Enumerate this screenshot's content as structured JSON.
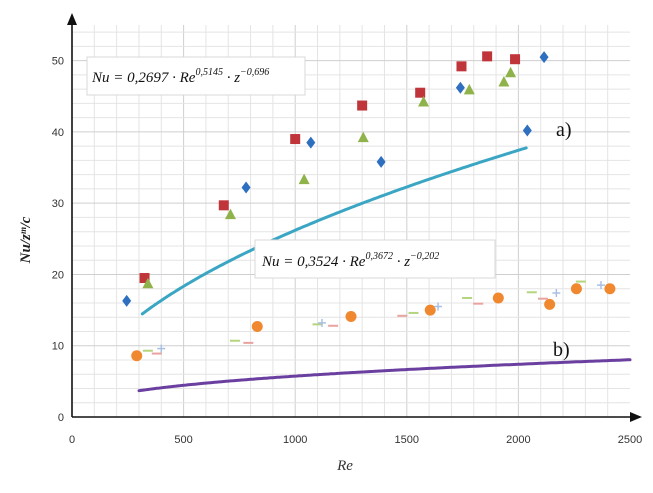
{
  "chart_data": {
    "type": "scatter",
    "xlabel": "Re",
    "ylabel": "Nu/zᵐ/c",
    "xlim": [
      0,
      2500
    ],
    "ylim": [
      0,
      55
    ],
    "x_ticks": [
      "0",
      "500",
      "1000",
      "1500",
      "2000",
      "2500"
    ],
    "y_ticks": [
      "0",
      "10",
      "20",
      "30",
      "40",
      "50"
    ],
    "grid": true,
    "equations": [
      {
        "base": "Nu = 0,2697 · Re",
        "exp1": "0,5145",
        "mid": " · z",
        "exp2": "−0,696"
      },
      {
        "base": "Nu = 0,3524 · Re",
        "exp1": "0,3672",
        "mid": " · z",
        "exp2": "−0,202"
      }
    ],
    "curve_labels": [
      "a)",
      "b)"
    ],
    "fits": [
      {
        "a": 0.7495,
        "b": 0.5145,
        "x_range": [
          315,
          2035
        ],
        "color": "#3aa6c4"
      },
      {
        "a": 0.454,
        "b": 0.3672,
        "x_range": [
          300,
          2500
        ],
        "color": "#6a3fa0"
      }
    ],
    "series": [
      {
        "marker": "square",
        "color": "#c0353a",
        "points": [
          [
            325,
            19.5
          ],
          [
            680,
            29.7
          ],
          [
            1000,
            39
          ],
          [
            1300,
            43.7
          ],
          [
            1560,
            45.5
          ],
          [
            1745,
            49.2
          ],
          [
            1860,
            50.6
          ],
          [
            1985,
            50.2
          ]
        ]
      },
      {
        "marker": "diamond",
        "color": "#2e6fbf",
        "points": [
          [
            245,
            16.3
          ],
          [
            780,
            32.2
          ],
          [
            1070,
            38.5
          ],
          [
            1385,
            35.8
          ],
          [
            1740,
            46.2
          ],
          [
            2040,
            40.2
          ],
          [
            2115,
            50.5
          ]
        ]
      },
      {
        "marker": "triangle",
        "color": "#8fb34a",
        "points": [
          [
            340,
            18.7
          ],
          [
            710,
            28.4
          ],
          [
            1040,
            33.3
          ],
          [
            1305,
            39.2
          ],
          [
            1575,
            44.2
          ],
          [
            1780,
            45.9
          ],
          [
            1935,
            47
          ],
          [
            1965,
            48.3
          ]
        ]
      },
      {
        "marker": "circle",
        "color": "#f0882f",
        "points": [
          [
            290,
            8.6
          ],
          [
            830,
            12.7
          ],
          [
            1250,
            14.1
          ],
          [
            1605,
            15
          ],
          [
            1910,
            16.7
          ],
          [
            2140,
            15.8
          ],
          [
            2260,
            18
          ],
          [
            2410,
            18
          ]
        ]
      },
      {
        "marker": "dash",
        "color": "#b4d47e",
        "points": [
          [
            340,
            9.3
          ],
          [
            730,
            10.7
          ],
          [
            1100,
            13
          ],
          [
            1530,
            14.6
          ],
          [
            1770,
            16.7
          ],
          [
            2060,
            17.5
          ],
          [
            2280,
            19
          ]
        ]
      },
      {
        "marker": "dash",
        "color": "#e9a39e",
        "points": [
          [
            380,
            8.9
          ],
          [
            790,
            10.4
          ],
          [
            1170,
            12.8
          ],
          [
            1480,
            14.2
          ],
          [
            1820,
            15.9
          ],
          [
            2110,
            16.6
          ]
        ]
      },
      {
        "marker": "plus",
        "color": "#a9c0e4",
        "points": [
          [
            400,
            9.6
          ],
          [
            1120,
            13.2
          ],
          [
            1640,
            15.5
          ],
          [
            2170,
            17.4
          ],
          [
            2370,
            18.5
          ]
        ]
      }
    ]
  }
}
